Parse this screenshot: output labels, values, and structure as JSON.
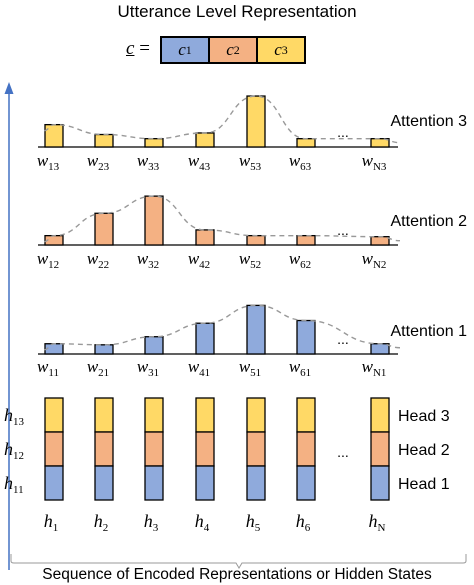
{
  "title": "Utterance Level Representation",
  "vector": {
    "symbol": "c",
    "equals": "=",
    "cells": [
      {
        "label": "c",
        "sub": "1",
        "color": "#8faadc"
      },
      {
        "label": "c",
        "sub": "2",
        "color": "#f4b183"
      },
      {
        "label": "c",
        "sub": "3",
        "color": "#ffd966"
      }
    ]
  },
  "colors": {
    "head1": "#8faadc",
    "head2": "#f4b183",
    "head3": "#ffd966",
    "dashed": "#999999",
    "arrow": "#4472c4"
  },
  "attention_rows": [
    {
      "label": "Attention 3",
      "color": "#ffd966",
      "weights": [
        0.43,
        0.24,
        0.16,
        0.27,
        0.98,
        0.16,
        0.16
      ],
      "labels": [
        "w13",
        "w23",
        "w33",
        "w43",
        "w53",
        "w63",
        "wN3"
      ],
      "subs": [
        "13",
        "23",
        "33",
        "43",
        "53",
        "63",
        "N3"
      ]
    },
    {
      "label": "Attention 2",
      "color": "#f4b183",
      "weights": [
        0.18,
        0.61,
        0.94,
        0.29,
        0.18,
        0.18,
        0.16
      ],
      "labels": [
        "w12",
        "w22",
        "w32",
        "w42",
        "w52",
        "w62",
        "wN2"
      ],
      "subs": [
        "12",
        "22",
        "32",
        "42",
        "52",
        "62",
        "N2"
      ]
    },
    {
      "label": "Attention 1",
      "color": "#8faadc",
      "weights": [
        0.19,
        0.17,
        0.32,
        0.57,
        0.9,
        0.62,
        0.19
      ],
      "labels": [
        "w11",
        "w21",
        "w31",
        "w41",
        "w51",
        "w61",
        "wN1"
      ],
      "subs": [
        "11",
        "21",
        "31",
        "41",
        "51",
        "61",
        "N1"
      ]
    }
  ],
  "ellipsis": "...",
  "hidden_states": {
    "labels": [
      "h1",
      "h2",
      "h3",
      "h4",
      "h5",
      "h6",
      "hN"
    ],
    "subs": [
      "1",
      "2",
      "3",
      "4",
      "5",
      "6",
      "N"
    ],
    "row_labels": [
      {
        "base": "h",
        "sub": "13"
      },
      {
        "base": "h",
        "sub": "12"
      },
      {
        "base": "h",
        "sub": "11"
      }
    ],
    "head_labels": [
      "Head 3",
      "Head 2",
      "Head 1"
    ]
  },
  "footer": "Sequence of Encoded Representations or Hidden States"
}
